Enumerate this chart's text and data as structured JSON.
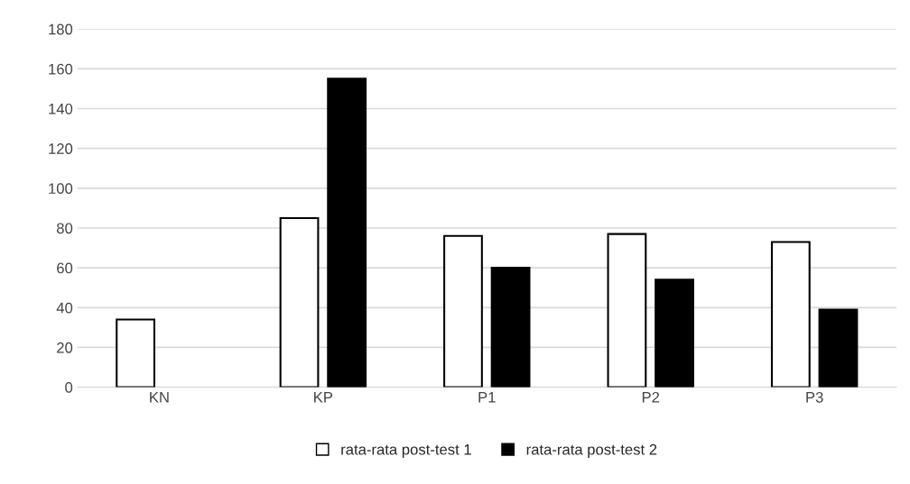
{
  "chart_data": {
    "type": "bar",
    "categories": [
      "KN",
      "KP",
      "P1",
      "P2",
      "P3"
    ],
    "series": [
      {
        "name": "rata-rata post-test 1",
        "color": "#ffffff",
        "values": [
          34,
          85,
          76,
          77,
          73
        ]
      },
      {
        "name": "rata-rata post-test 2",
        "color": "#000000",
        "values": [
          null,
          155,
          60,
          54,
          39
        ]
      }
    ],
    "ylim": [
      0,
      180
    ],
    "yticks": [
      0,
      20,
      40,
      60,
      80,
      100,
      120,
      140,
      160,
      180
    ],
    "grid": "y",
    "legend": "bottom"
  }
}
